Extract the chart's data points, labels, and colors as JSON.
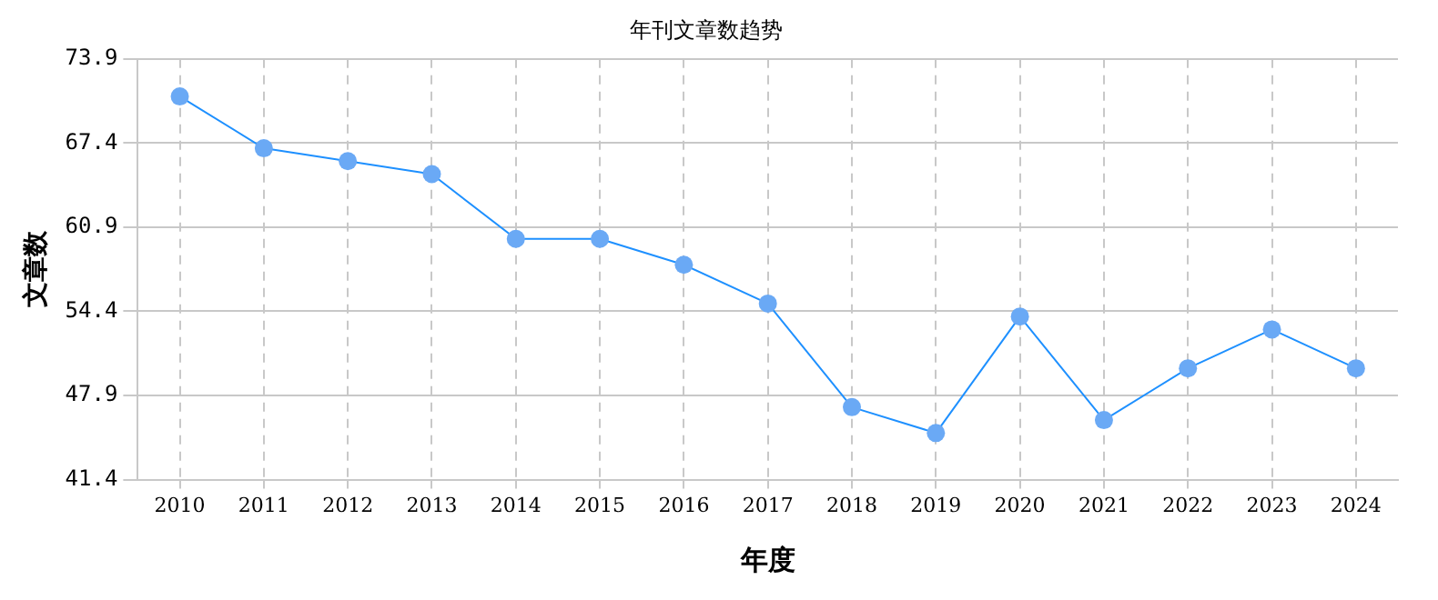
{
  "chart_data": {
    "type": "line",
    "title": "年刊文章数趋势",
    "xlabel": "年度",
    "ylabel": "文章数",
    "categories": [
      "2010",
      "2011",
      "2012",
      "2013",
      "2014",
      "2015",
      "2016",
      "2017",
      "2018",
      "2019",
      "2020",
      "2021",
      "2022",
      "2023",
      "2024"
    ],
    "series": [
      {
        "color": "#1e90ff",
        "values": [
          71,
          67,
          66,
          65,
          60,
          60,
          58,
          55,
          47,
          45,
          54,
          46,
          50,
          53,
          50
        ]
      }
    ],
    "ylim": [
      41.4,
      73.9
    ],
    "yticks": [
      41.4,
      47.9,
      54.4,
      60.9,
      67.4,
      73.9
    ],
    "grid": true,
    "marker": "circle",
    "line_style": "solid",
    "legend": false
  }
}
